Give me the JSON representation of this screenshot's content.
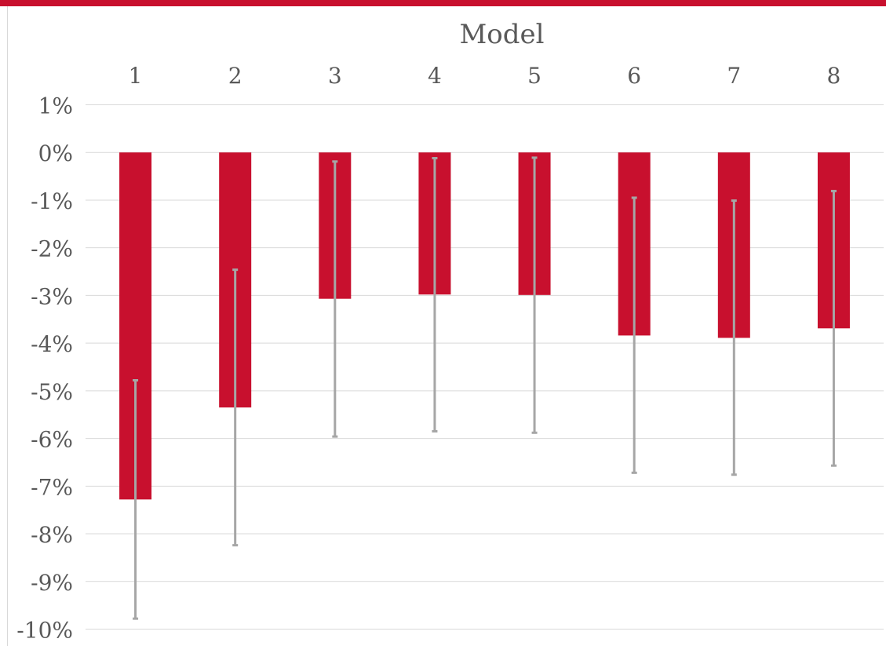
{
  "chart_data": {
    "type": "bar",
    "title": "Model",
    "xlabel": "",
    "ylabel": "",
    "categories": [
      "1",
      "2",
      "3",
      "4",
      "5",
      "6",
      "7",
      "8"
    ],
    "series": [
      {
        "values": [
          -7.28,
          -5.35,
          -3.07,
          -2.98,
          -2.99,
          -3.84,
          -3.89,
          -3.69
        ],
        "error_upper": [
          -4.78,
          -2.46,
          -0.19,
          -0.12,
          -0.11,
          -0.95,
          -1.01,
          -0.81
        ],
        "error_lower": [
          -9.78,
          -8.24,
          -5.96,
          -5.85,
          -5.88,
          -6.72,
          -6.76,
          -6.57
        ]
      }
    ],
    "ylim": [
      -10,
      1
    ],
    "yticks": [
      1,
      0,
      -1,
      -2,
      -3,
      -4,
      -5,
      -6,
      -7,
      -8,
      -9,
      -10
    ],
    "ytick_labels": [
      "1%",
      "0%",
      "-1%",
      "-2%",
      "-3%",
      "-4%",
      "-5%",
      "-6%",
      "-7%",
      "-8%",
      "-9%",
      "-10%"
    ],
    "x_axis_position": "top",
    "grid": true,
    "colors": {
      "bar": "#c8102e",
      "error_bar": "#a6a6a6",
      "grid": "#d9d9d9",
      "text": "#595959",
      "top_bar": "#c8102e"
    }
  }
}
